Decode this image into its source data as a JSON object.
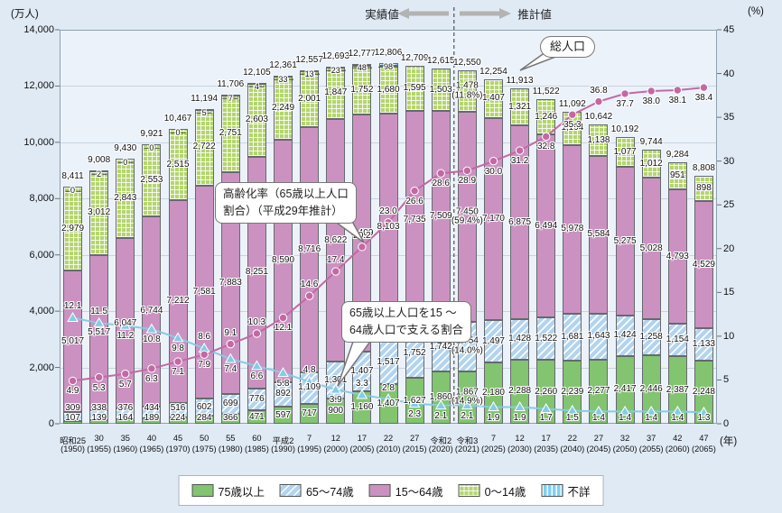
{
  "axes": {
    "left_unit": "(万人)",
    "right_unit": "(%)",
    "x_unit": "(年)"
  },
  "header": {
    "actual": "実績値",
    "estimate": "推計値"
  },
  "callouts": {
    "total_population": "総人口",
    "aging_line1": "高齢化率（65歳以上人口",
    "aging_line2": "割合）（平成29年推計）",
    "support_line1": "65歳以上人口を15 ～",
    "support_line2": "64歳人口で支える割合"
  },
  "colors": {
    "age75": "#82c46f",
    "age65_74": "#b2d4ef",
    "age15_64": "#cb92c1",
    "age0_14": "#b4d56e",
    "unknown": "#7fd0f2",
    "aging_line": "#c468a4",
    "support_line": "#86cbe4",
    "arrow_gray": "#b3b3b3"
  },
  "legend": [
    {
      "label": "75歳以上",
      "swatch": "age75"
    },
    {
      "label": "65～74歳",
      "swatch": "age65"
    },
    {
      "label": "15～64歳",
      "swatch": "age15"
    },
    {
      "label": "0～14歳",
      "swatch": "age014"
    },
    {
      "label": "不詳",
      "swatch": "unknown"
    }
  ],
  "chart_data": {
    "type": "bar",
    "subtype": "stacked-bars-with-two-percentage-lines",
    "categories_era": [
      "昭和25",
      "30",
      "35",
      "40",
      "45",
      "50",
      "55",
      "60",
      "平成2",
      "7",
      "12",
      "17",
      "22",
      "27",
      "令和2",
      "令和3",
      "7",
      "12",
      "17",
      "22",
      "27",
      "32",
      "37",
      "42",
      "47"
    ],
    "categories_year": [
      1950,
      1955,
      1960,
      1965,
      1970,
      1975,
      1980,
      1985,
      1990,
      1995,
      2000,
      2005,
      2010,
      2015,
      2020,
      2021,
      2025,
      2030,
      2035,
      2040,
      2045,
      2050,
      2055,
      2060,
      2065
    ],
    "series": [
      {
        "name": "75歳以上",
        "values": [
          107,
          139,
          164,
          189,
          224,
          284,
          366,
          471,
          597,
          717,
          900,
          1160,
          1407,
          1627,
          1860,
          1867,
          2180,
          2288,
          2260,
          2239,
          2277,
          2417,
          2446,
          2387,
          2248
        ]
      },
      {
        "name": "65～74歳",
        "values": [
          309,
          338,
          376,
          434,
          516,
          602,
          699,
          776,
          892,
          1109,
          1301,
          1407,
          1517,
          1752,
          1742,
          1754,
          1497,
          1428,
          1522,
          1681,
          1643,
          1424,
          1258,
          1154,
          1133
        ]
      },
      {
        "name": "15～64歳",
        "values": [
          5017,
          5517,
          6047,
          6744,
          7212,
          7581,
          7883,
          8251,
          8590,
          8716,
          8622,
          8409,
          8103,
          7735,
          7509,
          7450,
          7170,
          6875,
          6494,
          5978,
          5584,
          5275,
          5028,
          4793,
          4529
        ]
      },
      {
        "name": "0～14歳",
        "values": [
          2979,
          3012,
          2843,
          2553,
          2515,
          2722,
          2751,
          2603,
          2249,
          2001,
          1847,
          1752,
          1680,
          1595,
          1503,
          1478,
          1407,
          1321,
          1246,
          1194,
          1138,
          1077,
          1012,
          951,
          898
        ]
      },
      {
        "name": "不詳",
        "values": [
          0,
          2,
          0,
          0,
          0,
          5,
          7,
          4,
          33,
          13,
          23,
          48,
          98,
          null,
          null,
          null,
          null,
          null,
          null,
          null,
          null,
          null,
          null,
          null,
          null
        ]
      }
    ],
    "totals": [
      8411,
      9008,
      9430,
      9921,
      10467,
      11194,
      11706,
      12105,
      12361,
      12557,
      12693,
      12777,
      12806,
      12709,
      12615,
      12550,
      12254,
      11913,
      11522,
      11092,
      10642,
      10192,
      9744,
      9284,
      8808
    ],
    "pct_labels_2021": {
      "75歳以上": "(14.9%)",
      "65～74歳": "(14.0%)",
      "15～64歳": "(59.4%)",
      "0～14歳": "(11.8%)"
    },
    "lines": [
      {
        "name": "高齢化率（65歳以上人口割合）（平成29年推計）",
        "axis": "right",
        "values": [
          4.9,
          5.3,
          5.7,
          6.3,
          7.1,
          7.9,
          9.1,
          10.3,
          12.1,
          14.6,
          17.4,
          20.2,
          23.0,
          26.6,
          28.6,
          28.9,
          30.0,
          31.2,
          32.8,
          35.3,
          36.8,
          37.7,
          38.0,
          38.1,
          38.4
        ]
      },
      {
        "name": "65歳以上人口を15～64歳人口で支える割合",
        "axis": "right",
        "values": [
          12.1,
          11.5,
          11.2,
          10.8,
          9.8,
          8.6,
          7.4,
          6.6,
          5.8,
          4.8,
          3.9,
          3.3,
          2.8,
          2.3,
          2.1,
          2.1,
          1.9,
          1.9,
          1.7,
          1.5,
          1.4,
          1.4,
          1.4,
          1.4,
          1.3
        ]
      }
    ],
    "left_axis": {
      "min": 0,
      "max": 14000,
      "step": 2000
    },
    "right_axis": {
      "min": 0,
      "max": 45,
      "step": 5
    },
    "divider_between": [
      2020,
      2021
    ],
    "grid": true
  }
}
